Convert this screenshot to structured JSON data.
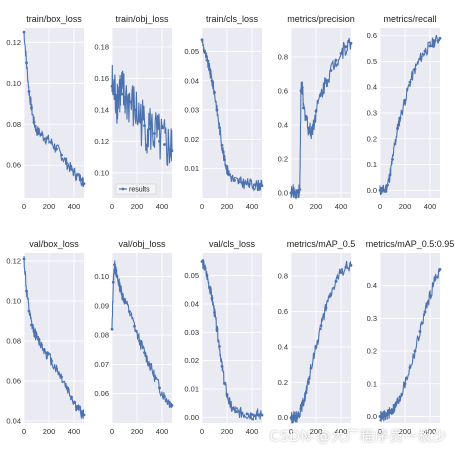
{
  "figure": {
    "watermark": "CSDN @大厂程序员一枚少",
    "background_color": "#EAEAF2",
    "line_color": "#4C72B0",
    "grid_color": "#FFFFFF"
  },
  "chart_data": [
    {
      "type": "line",
      "title": "train/box_loss",
      "legend": [],
      "xlim": [
        0,
        480
      ],
      "xticks": [
        0,
        200,
        400
      ],
      "ylim": [
        0.044,
        0.127
      ],
      "yticks": [
        0.06,
        0.08,
        0.1,
        0.12
      ],
      "ytick_labels": [
        "0.06",
        "0.08",
        "0.10",
        "0.12"
      ],
      "grid": true,
      "series": [
        {
          "x": [
            0,
            20,
            40,
            60,
            80,
            100,
            140,
            180,
            220,
            260,
            300,
            340,
            380,
            420,
            460,
            480
          ],
          "y": [
            0.125,
            0.11,
            0.096,
            0.088,
            0.081,
            0.077,
            0.075,
            0.073,
            0.071,
            0.068,
            0.065,
            0.061,
            0.058,
            0.055,
            0.053,
            0.051
          ]
        }
      ]
    },
    {
      "type": "line",
      "title": "train/obj_loss",
      "legend": [
        "results"
      ],
      "xlim": [
        0,
        480
      ],
      "xticks": [
        0,
        200,
        400
      ],
      "ylim": [
        0.084,
        0.192
      ],
      "yticks": [
        0.1,
        0.12,
        0.14,
        0.16,
        0.18
      ],
      "ytick_labels": [
        "0.10",
        "0.12",
        "0.14",
        "0.16",
        "0.18"
      ],
      "grid": true,
      "series": [
        {
          "name": "results",
          "x": [
            0,
            20,
            40,
            60,
            80,
            100,
            140,
            180,
            220,
            260,
            300,
            340,
            380,
            420,
            460,
            480
          ],
          "y": [
            0.155,
            0.15,
            0.148,
            0.152,
            0.15,
            0.148,
            0.145,
            0.14,
            0.135,
            0.13,
            0.128,
            0.125,
            0.12,
            0.118,
            0.115,
            0.114
          ]
        }
      ]
    },
    {
      "type": "line",
      "title": "train/cls_loss",
      "legend": [],
      "xlim": [
        0,
        480
      ],
      "xticks": [
        0,
        200,
        400
      ],
      "ylim": [
        0.0,
        0.058
      ],
      "yticks": [
        0.01,
        0.02,
        0.03,
        0.04,
        0.05
      ],
      "ytick_labels": [
        "0.01",
        "0.02",
        "0.03",
        "0.04",
        "0.05"
      ],
      "grid": true,
      "series": [
        {
          "x": [
            0,
            20,
            40,
            60,
            80,
            100,
            120,
            140,
            160,
            180,
            200,
            220,
            260,
            300,
            340,
            380,
            420,
            460,
            480
          ],
          "y": [
            0.054,
            0.05,
            0.047,
            0.044,
            0.04,
            0.036,
            0.03,
            0.024,
            0.018,
            0.013,
            0.01,
            0.008,
            0.006,
            0.0055,
            0.005,
            0.0048,
            0.0045,
            0.0043,
            0.0042
          ]
        }
      ]
    },
    {
      "type": "line",
      "title": "metrics/precision",
      "legend": [],
      "xlim": [
        0,
        480
      ],
      "xticks": [
        0,
        200,
        400
      ],
      "ylim": [
        -0.03,
        0.97
      ],
      "yticks": [
        0.0,
        0.2,
        0.4,
        0.6,
        0.8
      ],
      "ytick_labels": [
        "0.0",
        "0.2",
        "0.4",
        "0.6",
        "0.8"
      ],
      "grid": true,
      "series": [
        {
          "x": [
            0,
            20,
            40,
            60,
            70,
            80,
            90,
            100,
            120,
            140,
            160,
            180,
            200,
            240,
            280,
            320,
            360,
            400,
            440,
            480
          ],
          "y": [
            0.0,
            0.0,
            0.0,
            0.0,
            0.02,
            0.6,
            0.62,
            0.5,
            0.45,
            0.38,
            0.36,
            0.4,
            0.48,
            0.58,
            0.66,
            0.72,
            0.78,
            0.82,
            0.86,
            0.88
          ]
        }
      ]
    },
    {
      "type": "line",
      "title": "metrics/recall",
      "legend": [],
      "xlim": [
        0,
        480
      ],
      "xticks": [
        0,
        200,
        400
      ],
      "ylim": [
        -0.03,
        0.63
      ],
      "yticks": [
        0.0,
        0.1,
        0.2,
        0.3,
        0.4,
        0.5,
        0.6
      ],
      "ytick_labels": [
        "0.0",
        "0.1",
        "0.2",
        "0.3",
        "0.4",
        "0.5",
        "0.6"
      ],
      "grid": true,
      "series": [
        {
          "x": [
            0,
            20,
            40,
            60,
            80,
            100,
            120,
            140,
            160,
            200,
            240,
            280,
            320,
            360,
            400,
            440,
            480
          ],
          "y": [
            0.0,
            0.0,
            0.0,
            0.02,
            0.06,
            0.12,
            0.18,
            0.24,
            0.28,
            0.35,
            0.42,
            0.47,
            0.51,
            0.54,
            0.56,
            0.58,
            0.59
          ]
        }
      ]
    },
    {
      "type": "line",
      "title": "val/box_loss",
      "legend": [],
      "xlim": [
        0,
        480
      ],
      "xticks": [
        0,
        200,
        400
      ],
      "ylim": [
        0.039,
        0.124
      ],
      "yticks": [
        0.04,
        0.06,
        0.08,
        0.1,
        0.12
      ],
      "ytick_labels": [
        "0.04",
        "0.06",
        "0.08",
        "0.10",
        "0.12"
      ],
      "grid": true,
      "series": [
        {
          "x": [
            0,
            20,
            40,
            60,
            80,
            100,
            140,
            180,
            220,
            260,
            300,
            340,
            380,
            420,
            460,
            480
          ],
          "y": [
            0.121,
            0.105,
            0.095,
            0.088,
            0.085,
            0.082,
            0.078,
            0.074,
            0.07,
            0.066,
            0.062,
            0.057,
            0.052,
            0.047,
            0.044,
            0.043
          ]
        }
      ]
    },
    {
      "type": "line",
      "title": "val/obj_loss",
      "legend": [],
      "xlim": [
        0,
        480
      ],
      "xticks": [
        0,
        200,
        400
      ],
      "ylim": [
        0.05,
        0.108
      ],
      "yticks": [
        0.06,
        0.07,
        0.08,
        0.09,
        0.1
      ],
      "ytick_labels": [
        "0.06",
        "0.07",
        "0.08",
        "0.09",
        "0.10"
      ],
      "grid": true,
      "series": [
        {
          "x": [
            0,
            10,
            20,
            30,
            40,
            60,
            80,
            100,
            140,
            180,
            220,
            260,
            300,
            340,
            380,
            420,
            460,
            480
          ],
          "y": [
            0.082,
            0.098,
            0.104,
            0.102,
            0.1,
            0.097,
            0.094,
            0.092,
            0.088,
            0.083,
            0.078,
            0.074,
            0.07,
            0.066,
            0.062,
            0.059,
            0.057,
            0.056
          ]
        }
      ]
    },
    {
      "type": "line",
      "title": "val/cls_loss",
      "legend": [],
      "xlim": [
        0,
        480
      ],
      "xticks": [
        0,
        200,
        400
      ],
      "ylim": [
        -0.002,
        0.058
      ],
      "yticks": [
        0.0,
        0.01,
        0.02,
        0.03,
        0.04,
        0.05
      ],
      "ytick_labels": [
        "0.00",
        "0.01",
        "0.02",
        "0.03",
        "0.04",
        "0.05"
      ],
      "grid": true,
      "series": [
        {
          "x": [
            0,
            20,
            40,
            60,
            80,
            100,
            120,
            140,
            160,
            180,
            200,
            220,
            240,
            280,
            320,
            360,
            400,
            440,
            480
          ],
          "y": [
            0.055,
            0.053,
            0.05,
            0.046,
            0.042,
            0.037,
            0.031,
            0.025,
            0.018,
            0.012,
            0.008,
            0.005,
            0.003,
            0.002,
            0.0015,
            0.0012,
            0.001,
            0.0009,
            0.0008
          ]
        }
      ]
    },
    {
      "type": "line",
      "title": "metrics/mAP_0.5",
      "legend": [],
      "xlim": [
        0,
        480
      ],
      "xticks": [
        0,
        200,
        400
      ],
      "ylim": [
        -0.03,
        0.93
      ],
      "yticks": [
        0.0,
        0.2,
        0.4,
        0.6,
        0.8
      ],
      "ytick_labels": [
        "0.0",
        "0.2",
        "0.4",
        "0.6",
        "0.8"
      ],
      "grid": true,
      "series": [
        {
          "x": [
            0,
            20,
            40,
            60,
            80,
            100,
            120,
            140,
            160,
            200,
            240,
            280,
            320,
            360,
            400,
            440,
            480
          ],
          "y": [
            0.0,
            0.0,
            0.005,
            0.02,
            0.05,
            0.09,
            0.14,
            0.2,
            0.28,
            0.4,
            0.52,
            0.62,
            0.7,
            0.77,
            0.82,
            0.85,
            0.86
          ]
        }
      ]
    },
    {
      "type": "line",
      "title": "metrics/mAP_0.5:0.95",
      "legend": [],
      "xlim": [
        0,
        480
      ],
      "xticks": [
        0,
        200,
        400
      ],
      "ylim": [
        -0.02,
        0.5
      ],
      "yticks": [
        0.0,
        0.1,
        0.2,
        0.3,
        0.4
      ],
      "ytick_labels": [
        "0.0",
        "0.1",
        "0.2",
        "0.3",
        "0.4"
      ],
      "grid": true,
      "series": [
        {
          "x": [
            0,
            20,
            40,
            60,
            80,
            100,
            120,
            140,
            160,
            200,
            240,
            280,
            320,
            360,
            400,
            440,
            480
          ],
          "y": [
            0.0,
            0.0,
            0.002,
            0.006,
            0.012,
            0.02,
            0.03,
            0.045,
            0.06,
            0.1,
            0.15,
            0.2,
            0.26,
            0.32,
            0.37,
            0.42,
            0.45
          ]
        }
      ]
    }
  ]
}
